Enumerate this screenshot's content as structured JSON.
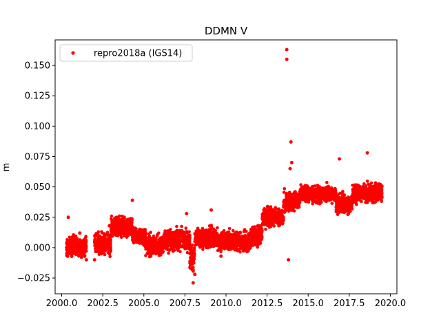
{
  "chart_data": {
    "type": "scatter",
    "title": "DDMN V",
    "xlabel": "",
    "ylabel": "m",
    "xlim": [
      1999.6,
      2020.4
    ],
    "ylim": [
      -0.038,
      0.171
    ],
    "x_ticks": [
      2000.0,
      2002.5,
      2005.0,
      2007.5,
      2010.0,
      2012.5,
      2015.0,
      2017.5,
      2020.0
    ],
    "x_tick_labels": [
      "2000.0",
      "2002.5",
      "2005.0",
      "2007.5",
      "2010.0",
      "2012.5",
      "2015.0",
      "2017.5",
      "2020.0"
    ],
    "y_ticks": [
      -0.025,
      0.0,
      0.025,
      0.05,
      0.075,
      0.1,
      0.125,
      0.15
    ],
    "y_tick_labels": [
      "−0.025",
      "0.000",
      "0.025",
      "0.050",
      "0.075",
      "0.100",
      "0.125",
      "0.150"
    ],
    "grid": false,
    "legend": {
      "position": "top-left",
      "entries": [
        "repro2018a (IGS14)"
      ]
    },
    "series": [
      {
        "name": "repro2018a (IGS14)",
        "color": "#ff0000",
        "marker": "circle",
        "points": [
          [
            2000.3,
            0.0
          ],
          [
            2000.4,
            0.025
          ],
          [
            2000.5,
            -0.005
          ],
          [
            2000.7,
            0.008
          ],
          [
            2000.9,
            0.002
          ],
          [
            2001.1,
            0.012
          ],
          [
            2001.3,
            -0.006
          ],
          [
            2001.5,
            -0.01
          ],
          [
            2002.0,
            -0.01
          ],
          [
            2002.3,
            0.005
          ],
          [
            2002.6,
            0.01
          ],
          [
            2002.9,
            0.018
          ],
          [
            2003.2,
            0.02
          ],
          [
            2003.5,
            0.022
          ],
          [
            2003.8,
            0.025
          ],
          [
            2004.1,
            0.017
          ],
          [
            2004.3,
            0.039
          ],
          [
            2004.5,
            0.012
          ],
          [
            2004.8,
            0.005
          ],
          [
            2005.0,
            0.002
          ],
          [
            2005.3,
            -0.005
          ],
          [
            2005.6,
            0.005
          ],
          [
            2005.9,
            -0.003
          ],
          [
            2006.2,
            0.008
          ],
          [
            2006.5,
            0.01
          ],
          [
            2006.8,
            0.005
          ],
          [
            2007.1,
            0.008
          ],
          [
            2007.4,
            0.012
          ],
          [
            2007.6,
            0.028
          ],
          [
            2007.9,
            -0.01
          ],
          [
            2008.0,
            -0.029
          ],
          [
            2008.1,
            -0.022
          ],
          [
            2008.4,
            0.005
          ],
          [
            2008.7,
            0.008
          ],
          [
            2009.1,
            0.031
          ],
          [
            2009.3,
            0.01
          ],
          [
            2009.7,
            -0.007
          ],
          [
            2010.0,
            0.005
          ],
          [
            2010.3,
            0.002
          ],
          [
            2010.6,
            0.01
          ],
          [
            2010.9,
            0.008
          ],
          [
            2011.2,
            0.003
          ],
          [
            2011.5,
            0.005
          ],
          [
            2011.8,
            0.01
          ],
          [
            2012.1,
            0.018
          ],
          [
            2012.4,
            0.025
          ],
          [
            2012.7,
            0.028
          ],
          [
            2013.0,
            0.022
          ],
          [
            2013.3,
            0.025
          ],
          [
            2013.6,
            0.03
          ],
          [
            2013.7,
            0.163
          ],
          [
            2013.7,
            0.155
          ],
          [
            2013.8,
            -0.01
          ],
          [
            2013.9,
            0.065
          ],
          [
            2013.95,
            0.087
          ],
          [
            2014.0,
            0.07
          ],
          [
            2014.2,
            0.04
          ],
          [
            2014.5,
            0.045
          ],
          [
            2014.8,
            0.04
          ],
          [
            2015.1,
            0.042
          ],
          [
            2015.4,
            0.045
          ],
          [
            2015.7,
            0.05
          ],
          [
            2016.0,
            0.04
          ],
          [
            2016.3,
            0.045
          ],
          [
            2016.6,
            0.04
          ],
          [
            2016.9,
            0.073
          ],
          [
            2017.2,
            0.038
          ],
          [
            2017.5,
            0.035
          ],
          [
            2017.8,
            0.04
          ],
          [
            2018.1,
            0.042
          ],
          [
            2018.4,
            0.045
          ],
          [
            2018.6,
            0.078
          ],
          [
            2018.8,
            0.05
          ],
          [
            2019.0,
            0.048
          ],
          [
            2019.2,
            0.05
          ],
          [
            2019.4,
            0.045
          ]
        ],
        "trend_segments": [
          {
            "x_start": 2000.3,
            "x_end": 2001.5,
            "y_mean": 0.001,
            "y_spread": 0.008
          },
          {
            "x_start": 2002.0,
            "x_end": 2003.0,
            "y_mean": 0.003,
            "y_spread": 0.009
          },
          {
            "x_start": 2003.0,
            "x_end": 2004.3,
            "y_mean": 0.017,
            "y_spread": 0.008
          },
          {
            "x_start": 2004.3,
            "x_end": 2005.1,
            "y_mean": 0.01,
            "y_spread": 0.007
          },
          {
            "x_start": 2005.1,
            "x_end": 2006.2,
            "y_mean": 0.002,
            "y_spread": 0.008
          },
          {
            "x_start": 2006.2,
            "x_end": 2007.8,
            "y_mean": 0.006,
            "y_spread": 0.009
          },
          {
            "x_start": 2007.8,
            "x_end": 2008.1,
            "y_mean": -0.008,
            "y_spread": 0.01
          },
          {
            "x_start": 2008.1,
            "x_end": 2009.5,
            "y_mean": 0.008,
            "y_spread": 0.008
          },
          {
            "x_start": 2009.5,
            "x_end": 2011.5,
            "y_mean": 0.005,
            "y_spread": 0.008
          },
          {
            "x_start": 2011.5,
            "x_end": 2012.2,
            "y_mean": 0.01,
            "y_spread": 0.008
          },
          {
            "x_start": 2012.2,
            "x_end": 2013.5,
            "y_mean": 0.025,
            "y_spread": 0.008
          },
          {
            "x_start": 2013.5,
            "x_end": 2014.5,
            "y_mean": 0.038,
            "y_spread": 0.008
          },
          {
            "x_start": 2014.5,
            "x_end": 2016.7,
            "y_mean": 0.044,
            "y_spread": 0.007
          },
          {
            "x_start": 2016.7,
            "x_end": 2017.7,
            "y_mean": 0.036,
            "y_spread": 0.008
          },
          {
            "x_start": 2017.7,
            "x_end": 2019.5,
            "y_mean": 0.045,
            "y_spread": 0.008
          }
        ]
      }
    ]
  }
}
